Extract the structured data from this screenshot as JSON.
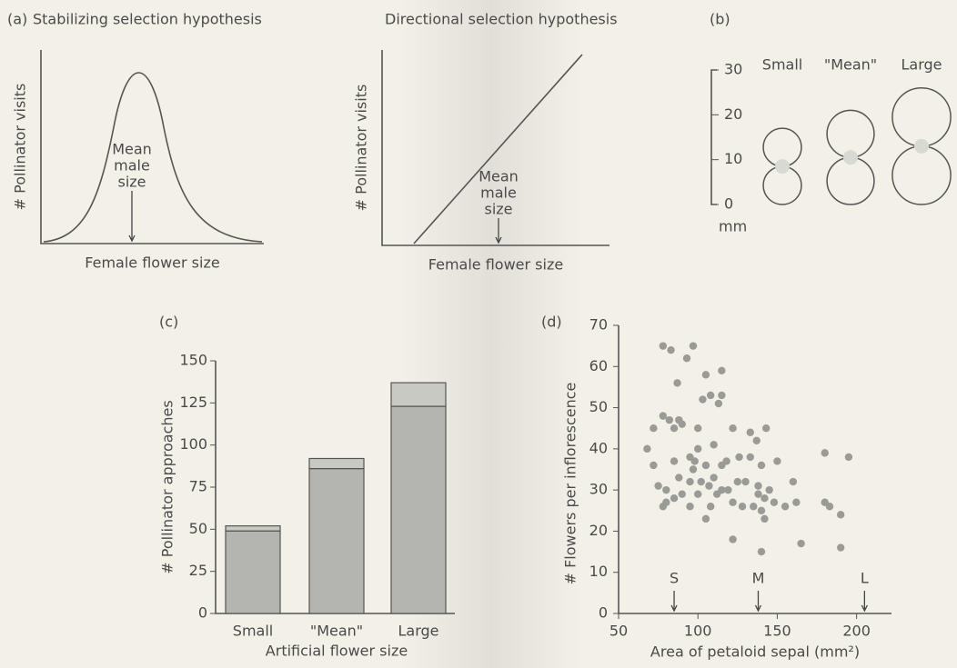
{
  "schematics": [
    {
      "label": "(a)",
      "title": "Stabilizing selection hypothesis",
      "ylabel": "# Pollinator visits",
      "xlabel": "Female flower size",
      "annotation": [
        "Mean",
        "male",
        "size"
      ]
    },
    {
      "title": "Directional selection hypothesis",
      "ylabel": "# Pollinator visits",
      "xlabel": "Female flower size",
      "annotation": [
        "Mean",
        "male",
        "size"
      ]
    }
  ],
  "chart_data": [
    {
      "type": "flowers",
      "label": "(b)",
      "categories": [
        "Small",
        "\"Mean\"",
        "Large"
      ],
      "values": [
        17,
        21,
        26
      ],
      "ylabel": "mm",
      "ylim": [
        0,
        30
      ],
      "yticks": [
        0,
        10,
        20,
        30
      ],
      "color": "#d9d9d4"
    },
    {
      "type": "stacked-bar",
      "label": "(c)",
      "ylabel": "# Pollinator approaches",
      "xlabel": "Artificial flower size",
      "categories": [
        "Small",
        "\"Mean\"",
        "Large"
      ],
      "series": [
        {
          "color": "#b4b4b0",
          "values": [
            49,
            86,
            123
          ]
        },
        {
          "color": "#c9c9c4",
          "values": [
            3,
            6,
            14
          ]
        }
      ],
      "ylim": [
        0,
        150
      ],
      "yticks": [
        0,
        25,
        50,
        75,
        100,
        125,
        150
      ]
    },
    {
      "type": "scatter",
      "label": "(d)",
      "ylabel": "# Flowers per inflorescence",
      "xlabel": "Area of petaloid sepal (mm²)",
      "color": "#9a9a97",
      "x": [
        78,
        83,
        93,
        97,
        87,
        105,
        115,
        108,
        103,
        115,
        113,
        78,
        82,
        88,
        90,
        85,
        72,
        68,
        100,
        122,
        133,
        143,
        137,
        150,
        100,
        110,
        95,
        85,
        97,
        105,
        115,
        118,
        126,
        133,
        140,
        72,
        88,
        95,
        102,
        107,
        110,
        115,
        119,
        125,
        130,
        138,
        145,
        142,
        138,
        75,
        80,
        85,
        90,
        100,
        112,
        122,
        128,
        135,
        148,
        155,
        160,
        162,
        180,
        183,
        190,
        180,
        195,
        78,
        95,
        105,
        122,
        140,
        142,
        140,
        165,
        190,
        98,
        108,
        80
      ],
      "y": [
        65,
        64,
        62,
        65,
        56,
        58,
        59,
        53,
        52,
        53,
        51,
        48,
        47,
        47,
        46,
        45,
        45,
        40,
        45,
        45,
        44,
        45,
        42,
        37,
        40,
        41,
        38,
        37,
        35,
        36,
        36,
        37,
        38,
        38,
        36,
        36,
        33,
        32,
        32,
        31,
        33,
        30,
        30,
        32,
        32,
        31,
        30,
        28,
        29,
        31,
        30,
        28,
        29,
        29,
        29,
        27,
        26,
        26,
        27,
        26,
        32,
        27,
        27,
        26,
        24,
        39,
        38,
        26,
        26,
        23,
        18,
        25,
        23,
        15,
        17,
        16,
        37,
        26,
        27
      ],
      "markers": [
        {
          "label": "S",
          "x": 85
        },
        {
          "label": "M",
          "x": 138
        },
        {
          "label": "L",
          "x": 205
        }
      ],
      "xlim": [
        50,
        222
      ],
      "xticks": [
        50,
        100,
        150,
        200
      ],
      "ylim": [
        0,
        70
      ],
      "yticks": [
        0,
        10,
        20,
        30,
        40,
        50,
        60,
        70
      ]
    }
  ]
}
